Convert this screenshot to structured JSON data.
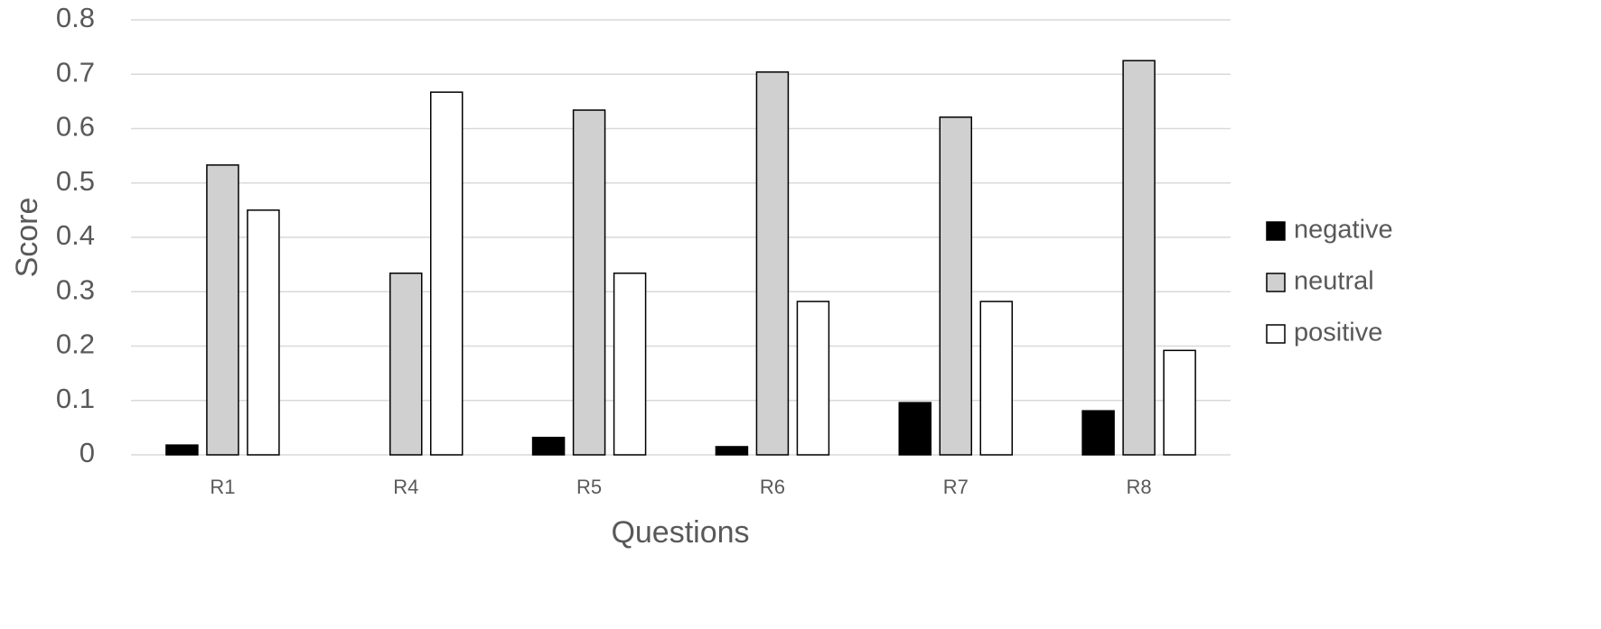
{
  "chart_data": {
    "type": "bar",
    "x_label": "Questions",
    "y_label": "Score",
    "categories": [
      "R1",
      "R4",
      "R5",
      "R6",
      "R7",
      "R8"
    ],
    "series": [
      {
        "name": "negative",
        "color": "#000000",
        "values": [
          0.018,
          0,
          0.032,
          0.015,
          0.096,
          0.081
        ]
      },
      {
        "name": "neutral",
        "color": "#d0d0d0",
        "values": [
          0.533,
          0.334,
          0.634,
          0.704,
          0.621,
          0.725
        ]
      },
      {
        "name": "positive",
        "color": "#ffffff",
        "values": [
          0.45,
          0.667,
          0.334,
          0.282,
          0.282,
          0.192
        ]
      }
    ],
    "ylim": [
      0,
      0.8
    ],
    "yticks": [
      0,
      0.1,
      0.2,
      0.3,
      0.4,
      0.5,
      0.6,
      0.7,
      0.8
    ],
    "grid": true,
    "legend": "right"
  }
}
